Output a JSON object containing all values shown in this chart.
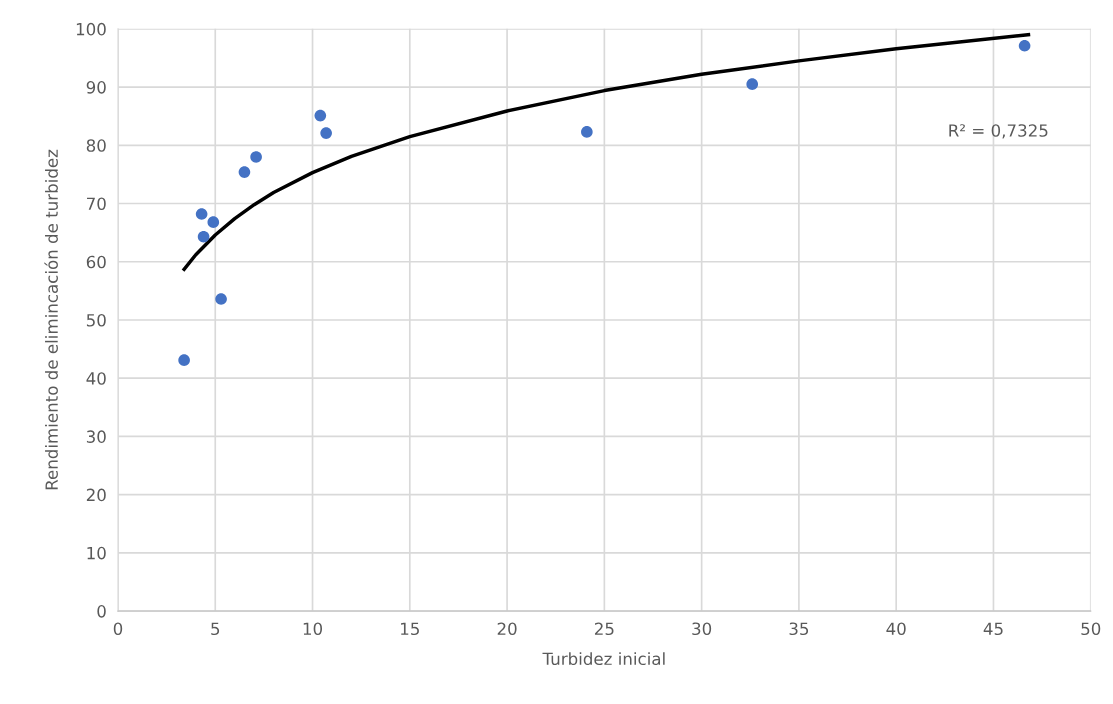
{
  "chart_data": {
    "type": "scatter",
    "xlabel": "Turbidez inicial",
    "ylabel": "Rendimiento de elimincación de turbidez",
    "xlim": [
      0,
      50
    ],
    "xticks": [
      0,
      5,
      10,
      15,
      20,
      25,
      30,
      35,
      40,
      45,
      50
    ],
    "ylim": [
      0,
      100
    ],
    "yticks": [
      0,
      10,
      20,
      30,
      40,
      50,
      60,
      70,
      80,
      90,
      100
    ],
    "grid": true,
    "legend": false,
    "marker": "circle",
    "annotations": [
      "R² = 0,7325"
    ],
    "series": [
      {
        "color": "#4472c4",
        "x": [
          3.4,
          4.3,
          4.4,
          4.9,
          5.3,
          6.5,
          7.1,
          10.4,
          10.7,
          24.1,
          32.6,
          46.6
        ],
        "values": [
          43.1,
          68.2,
          64.3,
          66.8,
          53.6,
          75.4,
          78.0,
          85.1,
          82.1,
          82.3,
          90.5,
          97.1
        ]
      },
      {
        "type": "line",
        "color": "#000000",
        "line_style": "solid",
        "marker": "none",
        "x": [
          3.4,
          4,
          5,
          6,
          7,
          8,
          10,
          12,
          15,
          20,
          25,
          30,
          35,
          40,
          46.8
        ],
        "values": [
          58.7,
          61.2,
          64.6,
          67.4,
          69.8,
          71.9,
          75.3,
          78.1,
          81.5,
          85.9,
          89.4,
          92.2,
          94.5,
          96.6,
          99.0
        ]
      }
    ]
  }
}
